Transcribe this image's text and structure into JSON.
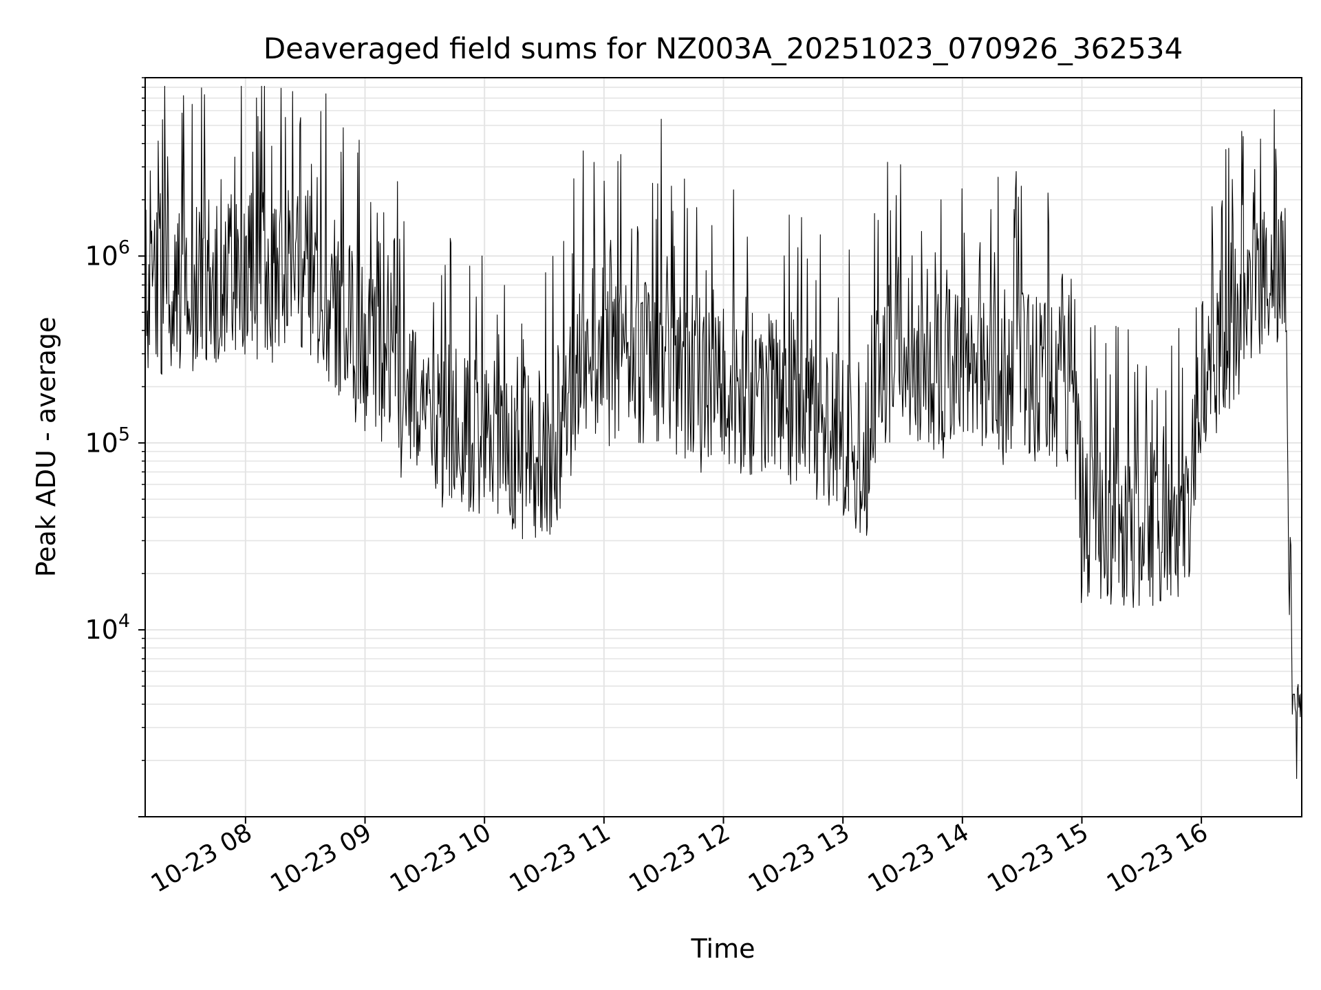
{
  "chart_data": {
    "type": "line",
    "title": "Deaveraged field sums for NZ003A_20251023_070926_362534",
    "xlabel": "Time",
    "ylabel": "Peak ADU - average",
    "yscale": "log",
    "ylim": [
      1000,
      9000000
    ],
    "xlim_hours": [
      7.16,
      16.84
    ],
    "grid": true,
    "line_color": "#000000",
    "x_ticks": [
      {
        "hour": 8,
        "label": "10-23 08"
      },
      {
        "hour": 9,
        "label": "10-23 09"
      },
      {
        "hour": 10,
        "label": "10-23 10"
      },
      {
        "hour": 11,
        "label": "10-23 11"
      },
      {
        "hour": 12,
        "label": "10-23 12"
      },
      {
        "hour": 13,
        "label": "10-23 13"
      },
      {
        "hour": 14,
        "label": "10-23 14"
      },
      {
        "hour": 15,
        "label": "10-23 15"
      },
      {
        "hour": 16,
        "label": "10-23 16"
      }
    ],
    "y_ticks": [
      {
        "value": 10000,
        "base": "10",
        "exp": "4"
      },
      {
        "value": 100000,
        "base": "10",
        "exp": "5"
      },
      {
        "value": 1000000,
        "base": "10",
        "exp": "6"
      }
    ],
    "series": [
      {
        "name": "Peak ADU - average",
        "trend": {
          "hours": [
            7.16,
            7.5,
            8.0,
            8.5,
            8.75,
            9.0,
            9.3,
            9.6,
            10.0,
            10.3,
            10.6,
            10.8,
            11.0,
            11.5,
            12.0,
            12.5,
            12.9,
            13.2,
            13.3,
            13.7,
            14.0,
            14.5,
            14.9,
            15.0,
            15.5,
            15.9,
            16.0,
            16.3,
            16.6,
            16.7,
            16.73,
            16.75,
            16.84
          ],
          "median": [
            700000,
            700000,
            800000,
            900000,
            500000,
            300000,
            200000,
            130000,
            100000,
            90000,
            90000,
            300000,
            300000,
            250000,
            200000,
            180000,
            120000,
            80000,
            300000,
            250000,
            250000,
            230000,
            200000,
            40000,
            35000,
            40000,
            250000,
            500000,
            800000,
            1000000,
            30000,
            4000,
            4000
          ]
        },
        "peaks": [
          {
            "hour": 7.35,
            "value": 3400000
          },
          {
            "hour": 7.87,
            "value": 1800000
          },
          {
            "hour": 8.06,
            "value": 3600000
          },
          {
            "hour": 8.46,
            "value": 5500000
          },
          {
            "hour": 8.55,
            "value": 3100000
          },
          {
            "hour": 8.8,
            "value": 3600000
          },
          {
            "hour": 9.1,
            "value": 1700000
          },
          {
            "hour": 11.48,
            "value": 5400000
          },
          {
            "hour": 11.7,
            "value": 1800000
          },
          {
            "hour": 13.4,
            "value": 1750000
          },
          {
            "hour": 16.63,
            "value": 2800000
          },
          {
            "hour": 16.7,
            "value": 1800000
          }
        ],
        "troughs": [
          {
            "hour": 15.0,
            "value": 17000
          },
          {
            "hour": 15.48,
            "value": 13500
          },
          {
            "hour": 15.85,
            "value": 22000
          },
          {
            "hour": 13.2,
            "value": 32000
          },
          {
            "hour": 10.6,
            "value": 43000
          },
          {
            "hour": 16.8,
            "value": 1600
          }
        ]
      }
    ]
  }
}
